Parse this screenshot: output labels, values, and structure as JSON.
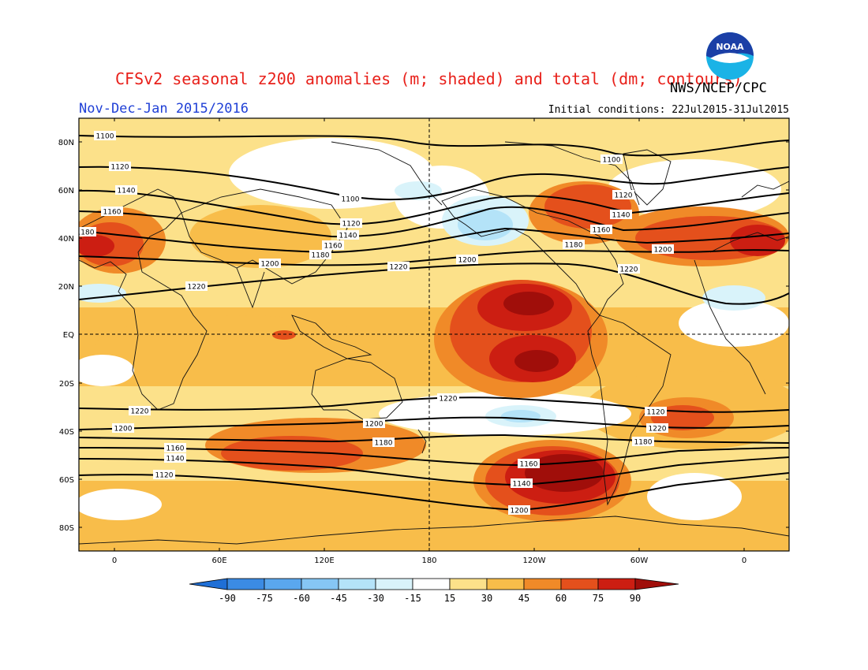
{
  "header": {
    "title": "CFSv2 seasonal z200 anomalies (m; shaded) and total (dm; contours)",
    "agency": "NWS/NCEP/CPC",
    "period": "Nov-Dec-Jan 2015/2016",
    "initial_conditions": "Initial conditions: 22Jul2015-31Jul2015",
    "logo_text": "NOAA"
  },
  "map": {
    "lat_labels": [
      "80N",
      "60N",
      "40N",
      "20N",
      "EQ",
      "20S",
      "40S",
      "60S",
      "80S"
    ],
    "lon_labels": [
      "0",
      "60E",
      "120E",
      "180",
      "120W",
      "60W",
      "0"
    ]
  },
  "colors": {
    "neg90": "#1f6fd6",
    "neg75": "#3b8be4",
    "neg60": "#5aa7ee",
    "neg45": "#86c6f4",
    "neg30": "#b4e3f8",
    "neg15": "#d9f3fa",
    "neutral": "#ffffff",
    "pos15": "#fce18a",
    "pos30": "#f8bd4a",
    "pos45": "#f08a28",
    "pos60": "#e4501c",
    "pos75": "#cc1e12",
    "pos90": "#a00e0a"
  },
  "colorbar": {
    "labels": [
      "-90",
      "-75",
      "-60",
      "-45",
      "-30",
      "-15",
      "15",
      "30",
      "45",
      "60",
      "75",
      "90"
    ]
  },
  "contour_labels": [
    "1100",
    "1120",
    "1140",
    "1160",
    "1180",
    "1200",
    "1220",
    "1100",
    "1120",
    "1140",
    "1160",
    "1180",
    "1200",
    "1220",
    "1100",
    "1120",
    "1140",
    "1160",
    "1180",
    "1200",
    "1220",
    "1220",
    "1200",
    "1180",
    "1160",
    "1140",
    "1120",
    "1200",
    "1180",
    "1220",
    "1160",
    "1140",
    "1120",
    "1220",
    "1200",
    "1180"
  ]
}
